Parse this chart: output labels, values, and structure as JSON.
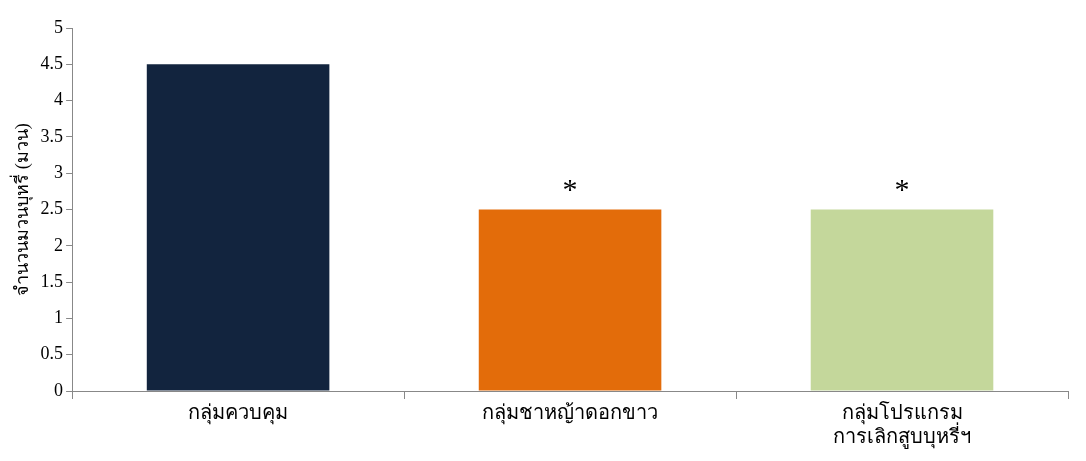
{
  "chart_data": {
    "type": "bar",
    "ylabel": "จำนวนมวนบุหรี่ (มวน)",
    "categories": [
      "กลุ่มควบคุม",
      "กลุ่มชาหญ้าดอกขาว",
      "กลุ่มโปรแกรม การเลิกสูบบุหรี่ฯ"
    ],
    "values": [
      4.5,
      2.5,
      2.5
    ],
    "colors": [
      "#12243e",
      "#e36c0a",
      "#c4d79b"
    ],
    "ylim": [
      0,
      5
    ],
    "yticks": [
      0,
      0.5,
      1,
      1.5,
      2,
      2.5,
      3,
      3.5,
      4,
      4.5,
      5
    ],
    "annotations": [
      {
        "text": "*",
        "x": "กลุ่มชาหญ้าดอกขาว",
        "y": 2.5
      },
      {
        "text": "*",
        "x": "กลุ่มโปรแกรม การเลิกสูบบุหรี่ฯ",
        "y": 2.5
      }
    ],
    "grid": false,
    "legend": false
  }
}
